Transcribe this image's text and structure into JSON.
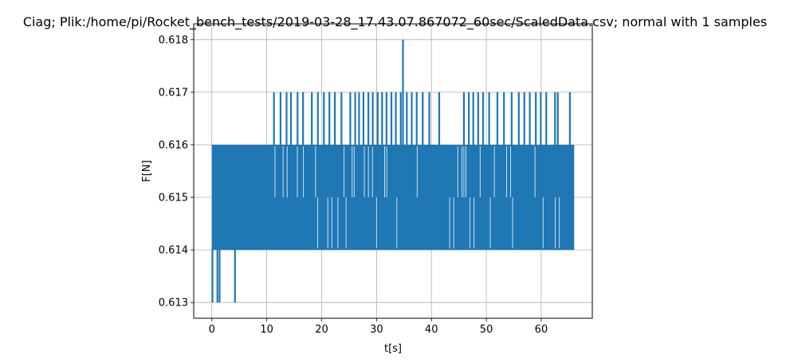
{
  "chart_data": {
    "type": "line",
    "title": "Ciag; Plik:/home/pi/Rocket_bench_tests/2019-03-28_17.43.07.867072_60sec/ScaledData.csv; normal with 1 samples",
    "xlabel": "t[s]",
    "ylabel": "F[N]",
    "xlim": [
      -3.3,
      69.3
    ],
    "ylim": [
      0.6127,
      0.6183
    ],
    "xticks": [
      0,
      10,
      20,
      30,
      40,
      50,
      60
    ],
    "xtick_labels": [
      "0",
      "10",
      "20",
      "30",
      "40",
      "50",
      "60"
    ],
    "yticks": [
      0.613,
      0.614,
      0.615,
      0.616,
      0.617,
      0.618
    ],
    "ytick_labels": [
      "0.613",
      "0.614",
      "0.615",
      "0.616",
      "0.617",
      "0.618"
    ],
    "grid": true,
    "series": [
      {
        "name": "",
        "color": "#1f77b4",
        "x_range": [
          0,
          66
        ],
        "main_band": [
          0.614,
          0.616
        ],
        "high_spikes": [
          {
            "x": 11.3,
            "y": 0.617
          },
          {
            "x": 12.5,
            "y": 0.617
          },
          {
            "x": 13.6,
            "y": 0.617
          },
          {
            "x": 14.4,
            "y": 0.617
          },
          {
            "x": 15.6,
            "y": 0.617
          },
          {
            "x": 16.6,
            "y": 0.617
          },
          {
            "x": 18.2,
            "y": 0.617
          },
          {
            "x": 19.3,
            "y": 0.617
          },
          {
            "x": 20.4,
            "y": 0.617
          },
          {
            "x": 21.4,
            "y": 0.617
          },
          {
            "x": 22.4,
            "y": 0.617
          },
          {
            "x": 23.6,
            "y": 0.617
          },
          {
            "x": 25.2,
            "y": 0.617
          },
          {
            "x": 26.1,
            "y": 0.617
          },
          {
            "x": 26.8,
            "y": 0.617
          },
          {
            "x": 27.6,
            "y": 0.617
          },
          {
            "x": 28.5,
            "y": 0.617
          },
          {
            "x": 29.3,
            "y": 0.617
          },
          {
            "x": 30.2,
            "y": 0.617
          },
          {
            "x": 31.0,
            "y": 0.617
          },
          {
            "x": 31.8,
            "y": 0.617
          },
          {
            "x": 32.7,
            "y": 0.617
          },
          {
            "x": 33.5,
            "y": 0.617
          },
          {
            "x": 34.4,
            "y": 0.617
          },
          {
            "x": 34.8,
            "y": 0.618
          },
          {
            "x": 35.5,
            "y": 0.617
          },
          {
            "x": 36.4,
            "y": 0.617
          },
          {
            "x": 37.3,
            "y": 0.617
          },
          {
            "x": 38.4,
            "y": 0.617
          },
          {
            "x": 39.6,
            "y": 0.617
          },
          {
            "x": 41.4,
            "y": 0.617
          },
          {
            "x": 45.9,
            "y": 0.617
          },
          {
            "x": 46.8,
            "y": 0.617
          },
          {
            "x": 47.6,
            "y": 0.617
          },
          {
            "x": 48.5,
            "y": 0.617
          },
          {
            "x": 49.4,
            "y": 0.617
          },
          {
            "x": 50.5,
            "y": 0.617
          },
          {
            "x": 52.0,
            "y": 0.617
          },
          {
            "x": 53.2,
            "y": 0.617
          },
          {
            "x": 54.6,
            "y": 0.617
          },
          {
            "x": 55.9,
            "y": 0.617
          },
          {
            "x": 56.9,
            "y": 0.617
          },
          {
            "x": 57.9,
            "y": 0.617
          },
          {
            "x": 59.0,
            "y": 0.617
          },
          {
            "x": 59.9,
            "y": 0.617
          },
          {
            "x": 60.9,
            "y": 0.617
          },
          {
            "x": 62.5,
            "y": 0.617
          },
          {
            "x": 63.0,
            "y": 0.617
          },
          {
            "x": 65.2,
            "y": 0.617
          }
        ],
        "low_spikes": [
          {
            "x": 0.1,
            "y": 0.613
          },
          {
            "x": 1.0,
            "y": 0.613
          },
          {
            "x": 1.4,
            "y": 0.613
          },
          {
            "x": 4.2,
            "y": 0.613
          }
        ]
      }
    ]
  }
}
